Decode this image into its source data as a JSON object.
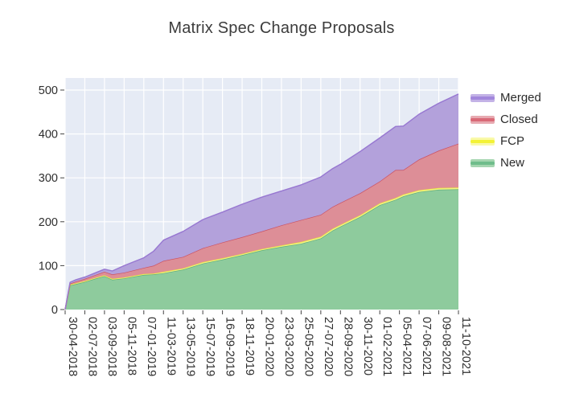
{
  "page": {
    "title": "Matrix Spec Change Proposals"
  },
  "chart_data": {
    "type": "area",
    "stacked": true,
    "title": "Matrix Spec Change Proposals",
    "grid": true,
    "plot_bg": "#e6ebf5",
    "grid_color": "#ffffff",
    "tick_mark_color": "#444444",
    "tick_label_color": "#2e2e2e",
    "title_color": "#3c3c3c",
    "x_axis": {
      "tick_labels": [
        "30-04-2018",
        "02-07-2018",
        "03-09-2018",
        "05-11-2018",
        "07-01-2019",
        "11-03-2019",
        "13-05-2019",
        "15-07-2019",
        "16-09-2019",
        "18-11-2019",
        "20-01-2020",
        "23-03-2020",
        "25-05-2020",
        "27-07-2020",
        "28-09-2020",
        "30-11-2020",
        "01-02-2021",
        "05-04-2021",
        "07-06-2021",
        "09-08-2021",
        "11-10-2021"
      ],
      "tickangle": 90
    },
    "y_axis": {
      "ticks": [
        0,
        100,
        200,
        300,
        400,
        500
      ],
      "range": [
        0,
        527
      ]
    },
    "legend": {
      "position": "right",
      "entries": [
        "Merged",
        "Closed",
        "FCP",
        "New"
      ]
    },
    "x_samples_tick_units": [
      0,
      0.25,
      0.55,
      1,
      1.5,
      2,
      2.4,
      3,
      4,
      4.5,
      5,
      6,
      7,
      8,
      9,
      10,
      11,
      12,
      13,
      13.6,
      14,
      15,
      16,
      16.8,
      17.2,
      18,
      19,
      20
    ],
    "series": [
      {
        "name": "New",
        "fill": "#8ecb9d",
        "line": "#5fae7c",
        "legend_halo": "#a5d6b0",
        "legend_stripe": "#6fbd8b",
        "values": [
          0,
          55,
          58,
          63,
          70,
          76,
          68,
          71,
          79,
          80,
          83,
          91,
          105,
          114,
          124,
          135,
          143,
          150,
          162,
          180,
          189,
          211,
          238,
          250,
          258,
          268,
          273,
          274
        ]
      },
      {
        "name": "FCP",
        "fill": "#f4f288",
        "line": "#e9e73f",
        "legend_halo": "#f9f9a9",
        "legend_stripe": "#f3f236",
        "values": [
          0,
          2,
          2,
          2,
          2,
          2,
          2,
          2,
          2,
          2,
          3,
          3,
          3,
          3,
          3,
          3,
          3,
          4,
          4,
          4,
          4,
          4,
          4,
          4,
          4,
          4,
          4,
          4
        ]
      },
      {
        "name": "Closed",
        "fill": "#dd8e97",
        "line": "#cb5263",
        "legend_halo": "#e7aab1",
        "legend_stripe": "#d96a77",
        "values": [
          0,
          2,
          4,
          5,
          6,
          8,
          10,
          11,
          14,
          18,
          25,
          26,
          32,
          36,
          38,
          40,
          46,
          50,
          50,
          50,
          50,
          50,
          50,
          64,
          56,
          70,
          85,
          100
        ]
      },
      {
        "name": "Merged",
        "fill": "#b3a1db",
        "line": "#9777d1",
        "legend_halo": "#c3b2e6",
        "legend_stripe": "#a287dc",
        "values": [
          0,
          3,
          4,
          4,
          5,
          6,
          8,
          16,
          23,
          33,
          47,
          58,
          65,
          69,
          75,
          78,
          78,
          80,
          86,
          87,
          88,
          95,
          99,
          99,
          100,
          103,
          108,
          113
        ]
      }
    ]
  }
}
